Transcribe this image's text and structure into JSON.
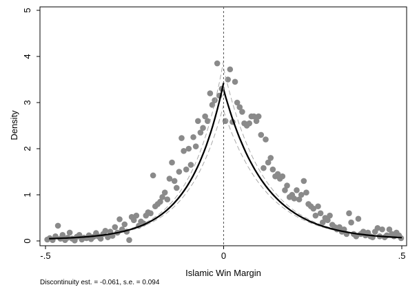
{
  "chart_data": {
    "type": "scatter",
    "xlabel": "Islamic Win Margin",
    "ylabel": "Density",
    "xlim": [
      -0.5,
      0.5
    ],
    "ylim": [
      0,
      5
    ],
    "x_ticks": [
      -0.5,
      0,
      0.5
    ],
    "x_tick_labels": [
      "-.5",
      "0",
      ".5"
    ],
    "y_ticks": [
      0,
      1,
      2,
      3,
      4,
      5
    ],
    "y_tick_labels": [
      "0",
      "1",
      "2",
      "3",
      "4",
      "5"
    ],
    "grid": false,
    "cutoff": 0,
    "colors": {
      "points": "#8a8a8a",
      "fit": "#000000",
      "ci": "#a8a8a8",
      "cutoff_line": "#555555"
    },
    "points": [
      [
        -0.495,
        0.03
      ],
      [
        -0.488,
        0.06
      ],
      [
        -0.48,
        0.02
      ],
      [
        -0.472,
        0.1
      ],
      [
        -0.465,
        0.33
      ],
      [
        -0.458,
        0.05
      ],
      [
        -0.452,
        0.13
      ],
      [
        -0.445,
        0.02
      ],
      [
        -0.438,
        0.07
      ],
      [
        -0.432,
        0.18
      ],
      [
        -0.425,
        0.05
      ],
      [
        -0.418,
        0.01
      ],
      [
        -0.412,
        0.09
      ],
      [
        -0.405,
        0.13
      ],
      [
        -0.398,
        0.03
      ],
      [
        -0.392,
        0.07
      ],
      [
        -0.385,
        0.06
      ],
      [
        -0.378,
        0.12
      ],
      [
        -0.372,
        0.04
      ],
      [
        -0.365,
        0.09
      ],
      [
        -0.358,
        0.17
      ],
      [
        -0.352,
        0.1
      ],
      [
        -0.345,
        0.05
      ],
      [
        -0.338,
        0.15
      ],
      [
        -0.332,
        0.22
      ],
      [
        -0.325,
        0.08
      ],
      [
        -0.318,
        0.2
      ],
      [
        -0.312,
        0.11
      ],
      [
        -0.305,
        0.3
      ],
      [
        -0.298,
        0.18
      ],
      [
        -0.292,
        0.47
      ],
      [
        -0.285,
        0.25
      ],
      [
        -0.278,
        0.36
      ],
      [
        -0.272,
        0.2
      ],
      [
        -0.265,
        0.02
      ],
      [
        -0.258,
        0.52
      ],
      [
        -0.252,
        0.45
      ],
      [
        -0.245,
        0.55
      ],
      [
        -0.238,
        0.33
      ],
      [
        -0.232,
        0.42
      ],
      [
        -0.225,
        0.38
      ],
      [
        -0.218,
        0.55
      ],
      [
        -0.212,
        0.62
      ],
      [
        -0.205,
        0.6
      ],
      [
        -0.198,
        1.42
      ],
      [
        -0.192,
        0.75
      ],
      [
        -0.185,
        0.8
      ],
      [
        -0.178,
        0.85
      ],
      [
        -0.172,
        0.95
      ],
      [
        -0.165,
        1.05
      ],
      [
        -0.158,
        0.9
      ],
      [
        -0.152,
        1.35
      ],
      [
        -0.145,
        1.7
      ],
      [
        -0.138,
        1.3
      ],
      [
        -0.132,
        1.15
      ],
      [
        -0.125,
        1.5
      ],
      [
        -0.118,
        2.23
      ],
      [
        -0.112,
        1.95
      ],
      [
        -0.105,
        1.55
      ],
      [
        -0.098,
        2.0
      ],
      [
        -0.092,
        1.65
      ],
      [
        -0.085,
        2.25
      ],
      [
        -0.078,
        2.05
      ],
      [
        -0.072,
        2.6
      ],
      [
        -0.065,
        2.35
      ],
      [
        -0.058,
        2.45
      ],
      [
        -0.052,
        2.7
      ],
      [
        -0.045,
        2.6
      ],
      [
        -0.038,
        3.2
      ],
      [
        -0.032,
        2.95
      ],
      [
        -0.025,
        3.05
      ],
      [
        -0.018,
        3.85
      ],
      [
        -0.012,
        3.15
      ],
      [
        -0.005,
        3.3
      ],
      [
        0.005,
        2.6
      ],
      [
        0.012,
        3.5
      ],
      [
        0.018,
        3.72
      ],
      [
        0.025,
        2.58
      ],
      [
        0.032,
        3.45
      ],
      [
        0.038,
        3.0
      ],
      [
        0.045,
        2.9
      ],
      [
        0.052,
        2.8
      ],
      [
        0.058,
        2.55
      ],
      [
        0.065,
        2.5
      ],
      [
        0.072,
        2.55
      ],
      [
        0.078,
        2.7
      ],
      [
        0.085,
        2.7
      ],
      [
        0.092,
        2.6
      ],
      [
        0.098,
        2.7
      ],
      [
        0.105,
        2.3
      ],
      [
        0.112,
        1.58
      ],
      [
        0.118,
        2.2
      ],
      [
        0.125,
        1.7
      ],
      [
        0.132,
        1.8
      ],
      [
        0.138,
        1.55
      ],
      [
        0.145,
        1.4
      ],
      [
        0.152,
        1.45
      ],
      [
        0.158,
        1.35
      ],
      [
        0.165,
        1.4
      ],
      [
        0.172,
        1.1
      ],
      [
        0.178,
        1.2
      ],
      [
        0.185,
        0.95
      ],
      [
        0.192,
        1.0
      ],
      [
        0.198,
        0.92
      ],
      [
        0.205,
        1.1
      ],
      [
        0.212,
        0.9
      ],
      [
        0.218,
        1.0
      ],
      [
        0.225,
        1.3
      ],
      [
        0.232,
        1.05
      ],
      [
        0.238,
        0.8
      ],
      [
        0.245,
        0.75
      ],
      [
        0.252,
        0.7
      ],
      [
        0.258,
        0.55
      ],
      [
        0.265,
        0.75
      ],
      [
        0.272,
        0.6
      ],
      [
        0.278,
        0.4
      ],
      [
        0.285,
        0.5
      ],
      [
        0.292,
        0.45
      ],
      [
        0.298,
        0.55
      ],
      [
        0.305,
        0.35
      ],
      [
        0.312,
        0.3
      ],
      [
        0.318,
        0.25
      ],
      [
        0.325,
        0.3
      ],
      [
        0.332,
        0.2
      ],
      [
        0.338,
        0.25
      ],
      [
        0.345,
        0.15
      ],
      [
        0.352,
        0.6
      ],
      [
        0.358,
        0.4
      ],
      [
        0.365,
        0.15
      ],
      [
        0.372,
        0.1
      ],
      [
        0.378,
        0.48
      ],
      [
        0.385,
        0.15
      ],
      [
        0.392,
        0.2
      ],
      [
        0.398,
        0.12
      ],
      [
        0.405,
        0.18
      ],
      [
        0.412,
        0.1
      ],
      [
        0.418,
        0.08
      ],
      [
        0.425,
        0.2
      ],
      [
        0.432,
        0.28
      ],
      [
        0.438,
        0.1
      ],
      [
        0.445,
        0.25
      ],
      [
        0.452,
        0.08
      ],
      [
        0.458,
        0.12
      ],
      [
        0.465,
        0.25
      ],
      [
        0.472,
        0.15
      ],
      [
        0.478,
        0.1
      ],
      [
        0.485,
        0.18
      ],
      [
        0.492,
        0.12
      ],
      [
        0.498,
        0.06
      ]
    ],
    "fit": {
      "left": {
        "peak": 3.4,
        "decay": 10.5
      },
      "right": {
        "peak": 3.25,
        "decay": 8.7
      },
      "ci_halfwidth": 0.42
    },
    "annotation": "Discontinuity est. = -0.061, s.e. =  0.094"
  }
}
